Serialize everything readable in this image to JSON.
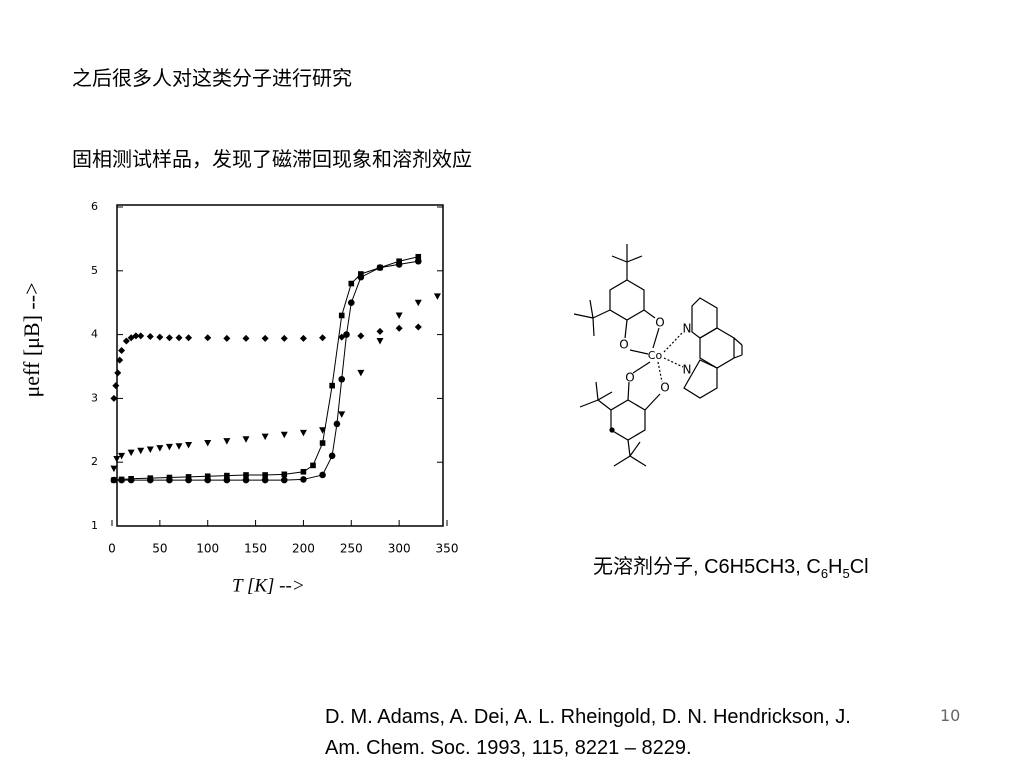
{
  "heading": "之后很多人对这类分子进行研究",
  "subheading": "固相测试样品，发现了磁滞回现象和溶剂效应",
  "chart_data": {
    "type": "scatter",
    "xlabel": "T [K]  -->",
    "ylabel": "μeff [μB]  -->",
    "xlim": [
      0,
      350
    ],
    "xticks": [
      0,
      50,
      100,
      150,
      200,
      250,
      300,
      350
    ],
    "ylim": [
      1,
      6
    ],
    "yticks": [
      1,
      2,
      3,
      4,
      5,
      6
    ],
    "series": [
      {
        "marker": "diamond",
        "line": false,
        "color": "#000000",
        "x": [
          2,
          4,
          6,
          8,
          10,
          15,
          20,
          25,
          30,
          40,
          50,
          60,
          70,
          80,
          100,
          120,
          140,
          160,
          180,
          200,
          220,
          240,
          260,
          280,
          300,
          320
        ],
        "values": [
          3.0,
          3.2,
          3.4,
          3.6,
          3.75,
          3.9,
          3.95,
          3.98,
          3.98,
          3.97,
          3.96,
          3.95,
          3.95,
          3.95,
          3.95,
          3.94,
          3.94,
          3.94,
          3.94,
          3.94,
          3.95,
          3.96,
          3.98,
          4.05,
          4.1,
          4.12
        ]
      },
      {
        "marker": "triangle",
        "line": false,
        "color": "#000000",
        "x": [
          2,
          5,
          10,
          20,
          30,
          40,
          50,
          60,
          70,
          80,
          100,
          120,
          140,
          160,
          180,
          200,
          220,
          240,
          260,
          280,
          300,
          320,
          340
        ],
        "values": [
          1.9,
          2.05,
          2.1,
          2.15,
          2.18,
          2.2,
          2.22,
          2.24,
          2.25,
          2.27,
          2.3,
          2.33,
          2.36,
          2.4,
          2.43,
          2.46,
          2.5,
          2.75,
          3.4,
          3.9,
          4.3,
          4.5,
          4.6
        ]
      },
      {
        "marker": "square",
        "line": true,
        "color": "#000000",
        "x": [
          2,
          10,
          20,
          40,
          60,
          80,
          100,
          120,
          140,
          160,
          180,
          200,
          210,
          220,
          230,
          240,
          250,
          260,
          280,
          300,
          320
        ],
        "values": [
          1.72,
          1.73,
          1.74,
          1.75,
          1.76,
          1.77,
          1.78,
          1.79,
          1.8,
          1.8,
          1.81,
          1.85,
          1.95,
          2.3,
          3.2,
          4.3,
          4.8,
          4.95,
          5.05,
          5.15,
          5.22
        ]
      },
      {
        "marker": "circle",
        "line": true,
        "color": "#000000",
        "x": [
          2,
          10,
          20,
          40,
          60,
          80,
          100,
          120,
          140,
          160,
          180,
          200,
          220,
          230,
          235,
          240,
          245,
          250,
          260,
          280,
          300,
          320
        ],
        "values": [
          1.72,
          1.72,
          1.72,
          1.72,
          1.72,
          1.72,
          1.72,
          1.72,
          1.72,
          1.72,
          1.72,
          1.73,
          1.8,
          2.1,
          2.6,
          3.3,
          4.0,
          4.5,
          4.9,
          5.05,
          5.1,
          5.15
        ]
      }
    ]
  },
  "molecule": {
    "atoms": [
      "O",
      "O",
      "Co",
      "N",
      "N",
      "O",
      "O"
    ]
  },
  "caption": [
    "无溶剂分子, C6H5CH3, C",
    "6",
    "H",
    "5",
    "Cl"
  ],
  "reference": [
    "D. M. Adams, A. Dei, A. L. Rheingold, D. N. Hendrickson, J.",
    "Am. Chem. Soc. 1993, 115, 8221 – 8229."
  ],
  "page_number": "10"
}
